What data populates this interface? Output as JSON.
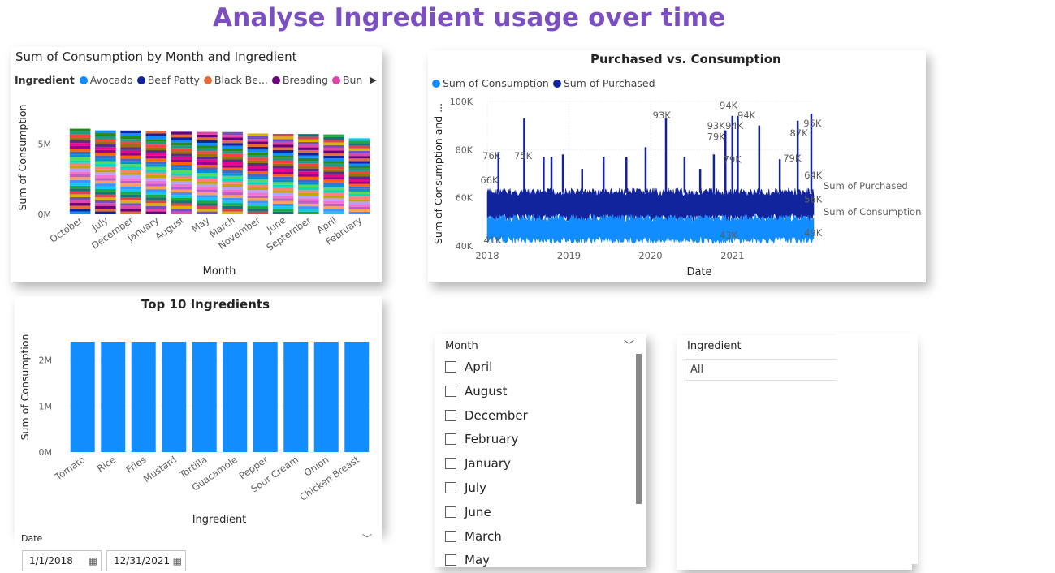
{
  "page": {
    "title": "Analyse Ingredient usage over time"
  },
  "colors": {
    "accent_purple": "#7b4fc2",
    "consumption": "#118dff",
    "purchased": "#12239e"
  },
  "visual_month": {
    "title": "Sum of Consumption by Month and Ingredient",
    "legend_title": "Ingredient",
    "legend_items": [
      {
        "name": "Avocado",
        "color": "#118dff"
      },
      {
        "name": "Beef Patty",
        "color": "#12239e"
      },
      {
        "name": "Black Be...",
        "color": "#e66c37"
      },
      {
        "name": "Breading",
        "color": "#6b007b"
      },
      {
        "name": "Bun",
        "color": "#e044a7"
      }
    ],
    "legend_more_icon": "caret-right-icon",
    "chart_data": {
      "type": "bar",
      "stacked": true,
      "title": "Sum of Consumption by Month and Ingredient",
      "xlabel": "Month",
      "ylabel": "Sum of Consumption",
      "categories": [
        "October",
        "July",
        "December",
        "January",
        "August",
        "May",
        "March",
        "November",
        "June",
        "September",
        "April",
        "February"
      ],
      "values": [
        6100000,
        5980000,
        5970000,
        5960000,
        5880000,
        5870000,
        5860000,
        5760000,
        5730000,
        5720000,
        5690000,
        5420000
      ],
      "ylim": [
        0,
        7000000
      ],
      "yticks": [
        "0M",
        "5M"
      ],
      "ytick_values": [
        0,
        5000000
      ],
      "segment_colors": [
        "#118dff",
        "#12239e",
        "#e66c37",
        "#6b007b",
        "#e044a7",
        "#744ec2",
        "#d9b300",
        "#d64550",
        "#197278",
        "#1aab40",
        "#15c6f4",
        "#4092ff",
        "#ffa058",
        "#be5dc9",
        "#f472d0",
        "#b5a1ff",
        "#c4a200",
        "#ff8080",
        "#00dbbc",
        "#5bd667",
        "#0091d5",
        "#4668c5",
        "#ff6300",
        "#99008a",
        "#ec008c",
        "#533285",
        "#99700a",
        "#ff4141",
        "#1f9a85",
        "#25891c"
      ],
      "legend_position": "top"
    }
  },
  "visual_pvc": {
    "title": "Purchased vs. Consumption",
    "legend_items": [
      {
        "name": "Sum of Consumption",
        "color": "#118dff"
      },
      {
        "name": "Sum of Purchased",
        "color": "#12239e"
      }
    ],
    "chart_data": {
      "type": "line",
      "title": "Purchased vs. Consumption",
      "xlabel": "Date",
      "ylabel": "Sum of Consumption and ...",
      "xlim": [
        "2018-01-01",
        "2021-12-31"
      ],
      "xticks": [
        "2018",
        "2019",
        "2020",
        "2021"
      ],
      "ylim": [
        40000,
        100000
      ],
      "yticks": [
        "40K",
        "60K",
        "80K",
        "100K"
      ],
      "ytick_values": [
        40000,
        60000,
        80000,
        100000
      ],
      "series": [
        {
          "name": "Sum of Purchased",
          "color": "#12239e",
          "band": [
            50000,
            64000
          ],
          "spikes": [
            {
              "x": "2018-02-20",
              "y": 79000
            },
            {
              "x": "2018-06-15",
              "y": 93000
            },
            {
              "x": "2018-09-10",
              "y": 77000
            },
            {
              "x": "2018-10-15",
              "y": 77000
            },
            {
              "x": "2018-12-05",
              "y": 78000
            },
            {
              "x": "2019-03-01",
              "y": 72000
            },
            {
              "x": "2019-06-05",
              "y": 77000
            },
            {
              "x": "2019-09-15",
              "y": 77000
            },
            {
              "x": "2019-12-10",
              "y": 81000
            },
            {
              "x": "2020-03-10",
              "y": 93000
            },
            {
              "x": "2020-06-01",
              "y": 77000
            },
            {
              "x": "2020-08-10",
              "y": 72000
            },
            {
              "x": "2020-10-10",
              "y": 78000
            },
            {
              "x": "2020-12-01",
              "y": 88000
            },
            {
              "x": "2021-01-01",
              "y": 94000
            },
            {
              "x": "2021-01-25",
              "y": 94000
            },
            {
              "x": "2021-05-01",
              "y": 90000
            },
            {
              "x": "2021-08-01",
              "y": 76000
            },
            {
              "x": "2021-10-20",
              "y": 92000
            },
            {
              "x": "2021-12-20",
              "y": 95000
            }
          ]
        },
        {
          "name": "Sum of Consumption",
          "color": "#118dff",
          "band": [
            41000,
            53000
          ]
        }
      ],
      "data_labels": [
        {
          "text": "76K",
          "x": "2018-01-20",
          "y": 76000
        },
        {
          "text": "66K",
          "x": "2018-01-10",
          "y": 66000
        },
        {
          "text": "41K",
          "x": "2018-01-25",
          "y": 41000
        },
        {
          "text": "75K",
          "x": "2018-06-10",
          "y": 76000
        },
        {
          "text": "93K",
          "x": "2020-02-20",
          "y": 93000
        },
        {
          "text": "94K",
          "x": "2020-12-15",
          "y": 97000
        },
        {
          "text": "94K",
          "x": "2021-03-05",
          "y": 93000
        },
        {
          "text": "93K",
          "x": "2020-10-20",
          "y": 88500
        },
        {
          "text": "94K",
          "x": "2021-01-10",
          "y": 88500
        },
        {
          "text": "79K",
          "x": "2020-10-20",
          "y": 84000
        },
        {
          "text": "79K",
          "x": "2021-01-01",
          "y": 74500
        },
        {
          "text": "43K",
          "x": "2020-12-15",
          "y": 43000
        },
        {
          "text": "87K",
          "x": "2021-10-25",
          "y": 85500
        },
        {
          "text": "95K",
          "x": "2021-12-25",
          "y": 89500
        },
        {
          "text": "79K",
          "x": "2021-09-25",
          "y": 75000
        },
        {
          "text": "64K",
          "x": "2021-12-28",
          "y": 68000
        },
        {
          "text": "56K",
          "x": "2021-12-28",
          "y": 58000
        },
        {
          "text": "49K",
          "x": "2021-12-28",
          "y": 44000
        }
      ],
      "end_labels": [
        "Sum of Purchased",
        "Sum of Consumption"
      ]
    }
  },
  "visual_top10": {
    "title": "Top 10 Ingredients",
    "chart_data": {
      "type": "bar",
      "title": "Top 10 Ingredients",
      "xlabel": "Ingredient",
      "ylabel": "Sum of Consumption",
      "categories": [
        "Tomato",
        "Rice",
        "Fries",
        "Mustard",
        "Tortilla",
        "Guacamole",
        "Pepper",
        "Sour Cream",
        "Onion",
        "Chicken Breast"
      ],
      "values": [
        2400000,
        2400000,
        2400000,
        2400000,
        2400000,
        2400000,
        2400000,
        2400000,
        2400000,
        2400000
      ],
      "ylim": [
        0,
        2700000
      ],
      "yticks": [
        "0M",
        "1M",
        "2M"
      ],
      "ytick_values": [
        0,
        1000000,
        2000000
      ],
      "color": "#118dff"
    }
  },
  "date_slicer": {
    "label": "Date",
    "start": "1/1/2018",
    "end": "12/31/2021"
  },
  "month_slicer": {
    "label": "Month",
    "items": [
      "April",
      "August",
      "December",
      "February",
      "January",
      "July",
      "June",
      "March",
      "May"
    ]
  },
  "ingredient_slicer": {
    "label": "Ingredient",
    "value": "All"
  }
}
